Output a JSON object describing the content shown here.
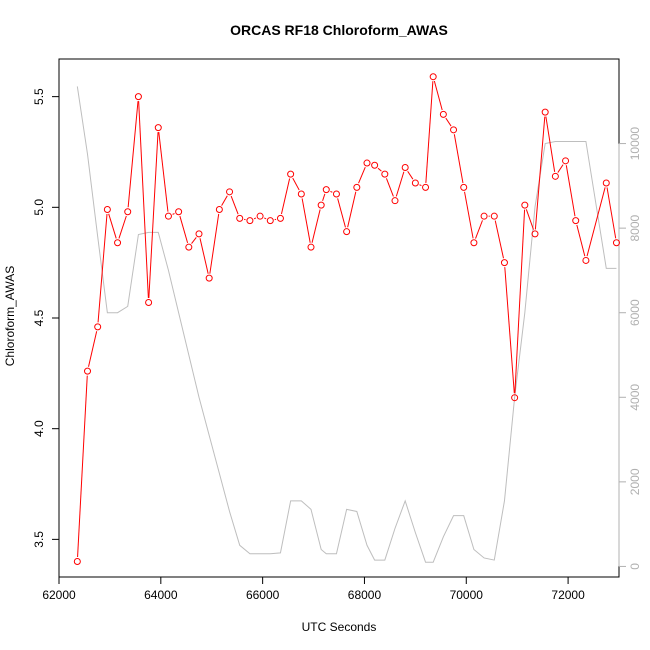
{
  "chart_data": {
    "type": "line",
    "title": "ORCAS RF18 Chloroform_AWAS",
    "xlabel": "UTC Seconds",
    "ylabel": "Chloroform_AWAS",
    "xlim": [
      62000,
      73000
    ],
    "ylim": [
      3.33,
      5.67
    ],
    "y2lim": [
      -250,
      12000
    ],
    "x_ticks": [
      62000,
      64000,
      66000,
      68000,
      70000,
      72000
    ],
    "y_ticks": [
      3.5,
      4.0,
      4.5,
      5.0,
      5.5
    ],
    "y2_ticks": [
      0,
      2000,
      4000,
      6000,
      8000,
      10000
    ],
    "series": [
      {
        "role": "primary",
        "color": "#ff0000",
        "x": [
          62360,
          62560,
          62760,
          62950,
          63150,
          63350,
          63560,
          63760,
          63950,
          64150,
          64350,
          64550,
          64750,
          64950,
          65150,
          65350,
          65550,
          65750,
          65950,
          66150,
          66350,
          66550,
          66760,
          66950,
          67150,
          67250,
          67450,
          67650,
          67850,
          68050,
          68200,
          68400,
          68600,
          68800,
          69000,
          69200,
          69350,
          69550,
          69750,
          69950,
          70150,
          70350,
          70550,
          70750,
          70950,
          71150,
          71350,
          71550,
          71750,
          71950,
          72150,
          72350,
          72750,
          72950
        ],
        "y": [
          3.4,
          4.26,
          4.46,
          4.99,
          4.84,
          4.98,
          5.5,
          4.57,
          5.36,
          4.96,
          4.98,
          4.82,
          4.88,
          4.68,
          4.99,
          5.07,
          4.95,
          4.94,
          4.96,
          4.94,
          4.95,
          5.15,
          5.06,
          4.82,
          5.01,
          5.08,
          5.06,
          4.89,
          5.09,
          5.2,
          5.19,
          5.15,
          5.03,
          5.18,
          5.11,
          5.09,
          5.59,
          5.42,
          5.35,
          5.09,
          4.84,
          4.96,
          4.96,
          4.75,
          4.14,
          5.01,
          4.88,
          5.43,
          5.14,
          5.21,
          4.94,
          4.76,
          5.11,
          4.84
        ]
      },
      {
        "role": "secondary",
        "color": "#bebebe",
        "x": [
          62360,
          62560,
          62760,
          62950,
          63150,
          63350,
          63560,
          63760,
          63950,
          64150,
          64350,
          64550,
          64750,
          64950,
          65150,
          65350,
          65550,
          65750,
          65950,
          66150,
          66350,
          66550,
          66760,
          66950,
          67150,
          67250,
          67450,
          67650,
          67850,
          68050,
          68200,
          68400,
          68600,
          68800,
          69000,
          69200,
          69350,
          69550,
          69750,
          69950,
          70150,
          70350,
          70550,
          70750,
          70950,
          71150,
          71350,
          71550,
          71750,
          71950,
          72150,
          72350,
          72750,
          72950
        ],
        "y": [
          11350,
          9750,
          7800,
          6000,
          6000,
          6150,
          7850,
          7900,
          7900,
          7000,
          6000,
          5000,
          4000,
          3100,
          2200,
          1300,
          500,
          300,
          300,
          300,
          320,
          1550,
          1550,
          1350,
          400,
          300,
          300,
          1350,
          1300,
          500,
          150,
          150,
          900,
          1550,
          800,
          100,
          100,
          700,
          1200,
          1200,
          400,
          200,
          150,
          1550,
          4000,
          6000,
          8500,
          10000,
          10050,
          10050,
          10050,
          10050,
          7050,
          7050
        ]
      }
    ]
  }
}
